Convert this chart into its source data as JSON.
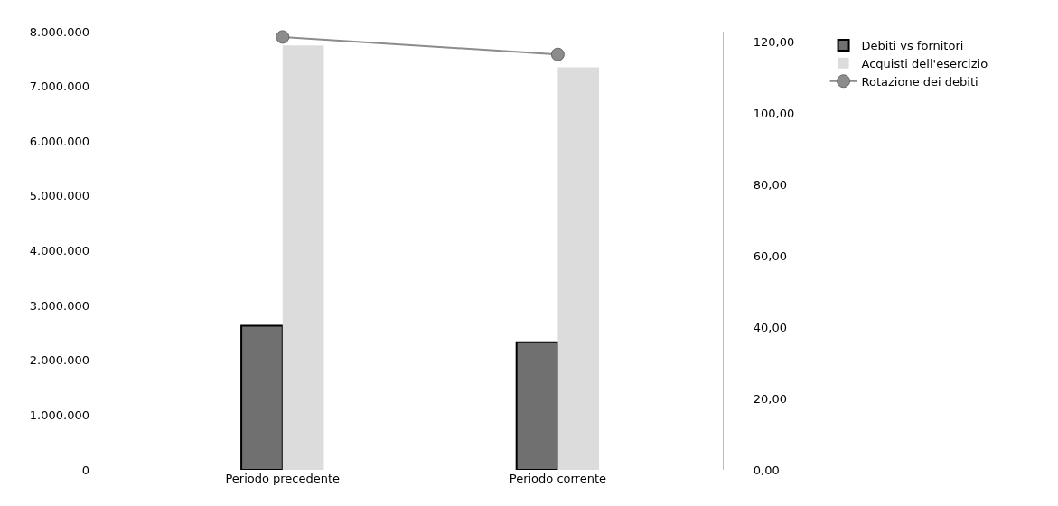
{
  "chart_data": {
    "type": "bar",
    "categories": [
      "Periodo precedente",
      "Periodo corrente"
    ],
    "series": [
      {
        "name": "Debiti vs fornitori",
        "color": "#707070",
        "values": [
          2630000,
          2330000
        ]
      },
      {
        "name": "Acquisti dell'esercizio",
        "color": "#dcdcdc",
        "values": [
          7750000,
          7350000
        ]
      },
      {
        "name": "Rotazione dei debiti",
        "color": "#8c8c8c",
        "type": "line",
        "axis": "y2",
        "marker": "circle",
        "values": [
          121.5,
          116.6
        ]
      }
    ],
    "ylim": [
      0,
      8000000
    ],
    "yticks": [
      {
        "value": 0,
        "label": "0"
      },
      {
        "value": 1000000,
        "label": "1.000.000"
      },
      {
        "value": 2000000,
        "label": "2.000.000"
      },
      {
        "value": 3000000,
        "label": "3.000.000"
      },
      {
        "value": 4000000,
        "label": "4.000.000"
      },
      {
        "value": 5000000,
        "label": "5.000.000"
      },
      {
        "value": 6000000,
        "label": "6.000.000"
      },
      {
        "value": 7000000,
        "label": "7.000.000"
      },
      {
        "value": 8000000,
        "label": "8.000.000"
      }
    ],
    "y2lim": [
      0,
      123
    ],
    "y2ticks": [
      {
        "value": 0,
        "label": "0,00"
      },
      {
        "value": 20,
        "label": "20,00"
      },
      {
        "value": 40,
        "label": "40,00"
      },
      {
        "value": 60,
        "label": "60,00"
      },
      {
        "value": 80,
        "label": "80,00"
      },
      {
        "value": 100,
        "label": "100,00"
      },
      {
        "value": 120,
        "label": "120,00"
      }
    ],
    "legend": "top right"
  }
}
